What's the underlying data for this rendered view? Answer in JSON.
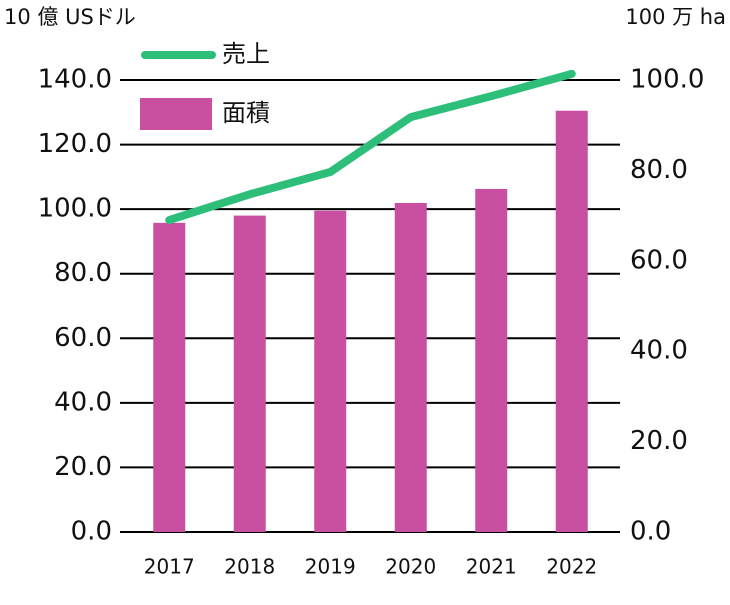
{
  "chart_data": {
    "type": "bar",
    "y_label": "10 億 USドル",
    "y2_label": "100 万 ha",
    "categories": [
      "2017",
      "2018",
      "2019",
      "2020",
      "2021",
      "2022"
    ],
    "series": [
      {
        "name": "売上",
        "type": "line",
        "color": "#2dbf7a",
        "axis": "y",
        "values": [
          96.6,
          104.6,
          111.5,
          128.5,
          135.0,
          141.9
        ]
      },
      {
        "name": "面積",
        "type": "bar",
        "color": "#c94fa0",
        "axis": "y2",
        "values": [
          68.4,
          70.0,
          71.1,
          72.8,
          75.9,
          93.2
        ]
      }
    ],
    "ylim": [
      0,
      140
    ],
    "yticks": [
      {
        "value": 0,
        "label": "0.0"
      },
      {
        "value": 20,
        "label": "20.0"
      },
      {
        "value": 40,
        "label": "40.0"
      },
      {
        "value": 60,
        "label": "60.0"
      },
      {
        "value": 80,
        "label": "80.0"
      },
      {
        "value": 100,
        "label": "100.0"
      },
      {
        "value": 120,
        "label": "120.0"
      },
      {
        "value": 140,
        "label": "140.0"
      }
    ],
    "y2lim": [
      0,
      100
    ],
    "y2ticks": [
      {
        "value": 0,
        "label": "0.0"
      },
      {
        "value": 20,
        "label": "20.0"
      },
      {
        "value": 40,
        "label": "40.0"
      },
      {
        "value": 60,
        "label": "60.0"
      },
      {
        "value": 80,
        "label": "80.0"
      },
      {
        "value": 100,
        "label": "100.0"
      }
    ],
    "grid": true
  }
}
